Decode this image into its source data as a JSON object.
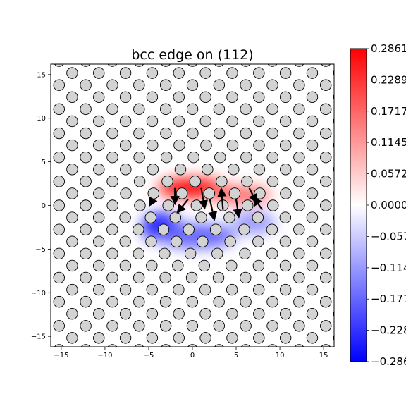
{
  "chart_data": {
    "type": "heatmap",
    "title": "bcc edge on (112)",
    "xlabel": "",
    "ylabel": "",
    "xlim": [
      -16.2,
      16.2
    ],
    "ylim": [
      -16.2,
      16.2
    ],
    "xticks": [
      -15,
      -10,
      -5,
      0,
      5,
      10,
      15
    ],
    "yticks": [
      -15,
      -10,
      -5,
      0,
      5,
      10,
      15
    ],
    "colormap": "bwr",
    "colorbar": {
      "min": -0.2861,
      "max": 0.2861,
      "ticks": [
        0.2861,
        0.2289,
        0.1717,
        0.1145,
        0.0572,
        0.0,
        -0.0572,
        -0.1145,
        -0.1717,
        -0.2289,
        -0.2861
      ],
      "tick_labels": [
        "0.2861",
        "0.2289",
        "0.1717",
        "0.1145",
        "0.0572",
        "0.0000",
        "−0.0572",
        "−0.1145",
        "−0.1717",
        "−0.2289",
        "−0.2861"
      ]
    },
    "lattice": {
      "row_spacing": 1.38,
      "col_spacing": 3.05,
      "row_shift": 1.5,
      "atom_radius": 0.5,
      "dislocation_core": [
        1.0,
        -0.8
      ]
    },
    "field_blobs": [
      {
        "x": 0.0,
        "y": 2.0,
        "sx": 4.0,
        "sy": 1.1,
        "value": 0.2861
      },
      {
        "x": 5.5,
        "y": 1.2,
        "sx": 3.5,
        "sy": 1.0,
        "value": 0.1717
      },
      {
        "x": -3.5,
        "y": -2.5,
        "sx": 2.2,
        "sy": 1.6,
        "value": -0.2861
      },
      {
        "x": 0.5,
        "y": -3.5,
        "sx": 4.5,
        "sy": 1.4,
        "value": -0.1717
      },
      {
        "x": 7.0,
        "y": -2.0,
        "sx": 2.5,
        "sy": 1.3,
        "value": -0.1145
      }
    ],
    "arrows": [
      {
        "x": -2.0,
        "y": 2.0,
        "dx": 0.0,
        "dy": -1.8
      },
      {
        "x": 1.0,
        "y": 2.0,
        "dx": 0.4,
        "dy": -2.3
      },
      {
        "x": 2.0,
        "y": 0.7,
        "dx": 0.5,
        "dy": -2.3
      },
      {
        "x": 3.5,
        "y": -0.5,
        "dx": -0.2,
        "dy": 2.4
      },
      {
        "x": 5.0,
        "y": 0.7,
        "dx": 0.3,
        "dy": -2.0
      },
      {
        "x": 6.5,
        "y": 2.0,
        "dx": 0.8,
        "dy": -1.6
      },
      {
        "x": 8.0,
        "y": -0.5,
        "dx": -1.0,
        "dy": 1.4
      },
      {
        "x": -0.5,
        "y": 0.7,
        "dx": -1.2,
        "dy": -1.5
      },
      {
        "x": -4.5,
        "y": 0.7,
        "dx": -0.4,
        "dy": -0.7
      }
    ]
  }
}
